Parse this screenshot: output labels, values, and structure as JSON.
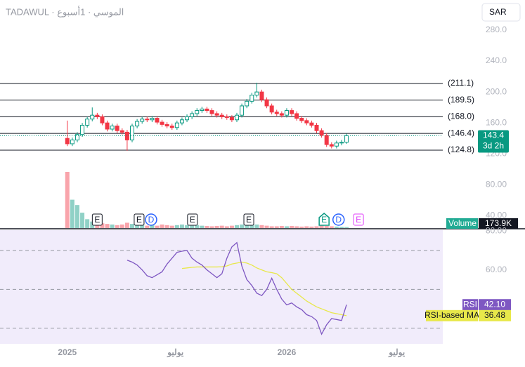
{
  "header": {
    "title": "TADAWUL · الموسي · 1أسبوع",
    "currency": "SAR",
    "countdown": "3d 2h"
  },
  "chart_data": [
    {
      "type": "candlestick",
      "x": [
        0,
        1,
        2,
        3,
        4,
        5,
        6,
        7,
        8,
        9,
        10,
        11,
        12,
        13,
        14,
        15,
        16,
        17,
        18,
        19,
        20,
        21,
        22,
        23,
        24,
        25,
        26,
        27,
        28,
        29,
        30,
        31,
        32,
        33,
        34,
        35,
        36,
        37,
        38,
        39,
        40,
        41,
        42,
        43,
        44,
        45,
        46,
        47,
        48,
        49,
        50,
        51,
        52,
        53,
        54,
        55,
        56
      ],
      "open": [
        140,
        133,
        138,
        145,
        157,
        165,
        170,
        168,
        160,
        152,
        156,
        150,
        148,
        138,
        156,
        162,
        165,
        164,
        166,
        161,
        158,
        156,
        154,
        160,
        164,
        168,
        172,
        176,
        178,
        176,
        172,
        170,
        168,
        167,
        164,
        170,
        182,
        188,
        196,
        200,
        190,
        182,
        174,
        172,
        170,
        176,
        172,
        166,
        163,
        160,
        157,
        150,
        144,
        132,
        130,
        134,
        135
      ],
      "high": [
        163,
        141,
        148,
        160,
        168,
        180,
        173,
        171,
        163,
        159,
        159,
        153,
        151,
        159,
        165,
        168,
        168,
        169,
        169,
        164,
        161,
        159,
        163,
        167,
        171,
        175,
        179,
        181,
        181,
        179,
        175,
        173,
        171,
        170,
        173,
        185,
        191,
        199,
        212,
        203,
        193,
        185,
        177,
        175,
        179,
        179,
        175,
        169,
        166,
        163,
        160,
        153,
        147,
        135,
        137,
        138,
        146
      ],
      "low": [
        130,
        130,
        135,
        142,
        154,
        162,
        165,
        157,
        149,
        149,
        147,
        145,
        124,
        135,
        153,
        159,
        161,
        161,
        158,
        155,
        153,
        151,
        151,
        157,
        161,
        165,
        169,
        173,
        173,
        169,
        167,
        165,
        164,
        161,
        161,
        167,
        179,
        185,
        193,
        187,
        179,
        171,
        169,
        167,
        167,
        169,
        163,
        160,
        157,
        154,
        147,
        141,
        129,
        127,
        127,
        131,
        133
      ],
      "close": [
        133,
        138,
        145,
        157,
        165,
        170,
        168,
        160,
        152,
        156,
        150,
        148,
        138,
        156,
        162,
        165,
        164,
        166,
        161,
        158,
        156,
        154,
        160,
        164,
        168,
        172,
        176,
        178,
        176,
        172,
        170,
        168,
        167,
        164,
        170,
        182,
        188,
        196,
        200,
        190,
        182,
        174,
        172,
        170,
        176,
        172,
        166,
        163,
        160,
        157,
        150,
        144,
        132,
        130,
        134,
        135,
        143.4
      ],
      "up_color": "#089981",
      "down_color": "#f23645",
      "volume": {
        "name": "Volume",
        "values": [
          9500,
          4800,
          3900,
          2600,
          1500,
          1100,
          900,
          800,
          700,
          600,
          500,
          600,
          900,
          700,
          500,
          600,
          400,
          500,
          400,
          600,
          500,
          400,
          500,
          600,
          500,
          400,
          500,
          400,
          350,
          300,
          350,
          400,
          300,
          400,
          500,
          600,
          700,
          900,
          600,
          500,
          400,
          300,
          300,
          350,
          300,
          350,
          300,
          250,
          300,
          250,
          300,
          400,
          350,
          300,
          250,
          200,
          173.9
        ],
        "value_labels": [
          null,
          null,
          null,
          null,
          null,
          null,
          null,
          null,
          null,
          null,
          null,
          null,
          null,
          null,
          null,
          null,
          null,
          null,
          null,
          null,
          null,
          null,
          null,
          null,
          null,
          null,
          null,
          null,
          null,
          null,
          null,
          null,
          null,
          null,
          null,
          null,
          null,
          null,
          null,
          null,
          null,
          null,
          null,
          null,
          null,
          null,
          null,
          null,
          null,
          null,
          null,
          null,
          null,
          null,
          null,
          null,
          "173.9K"
        ]
      },
      "levels": {
        "values": [
          211.1,
          189.5,
          168.0,
          146.4,
          124.8
        ],
        "value_labels": [
          "(211.1)",
          "(189.5)",
          "(168.0)",
          "(146.4)",
          "(124.8)"
        ]
      },
      "events": [
        {
          "x": 6,
          "label": "E",
          "shape": "box",
          "color": "#131722"
        },
        {
          "x": 14.4,
          "label": "E",
          "shape": "box",
          "color": "#131722"
        },
        {
          "x": 16.8,
          "label": "D",
          "shape": "circle",
          "color": "#2962ff"
        },
        {
          "x": 25.1,
          "label": "E",
          "shape": "box",
          "color": "#131722"
        },
        {
          "x": 36.4,
          "label": "E",
          "shape": "box",
          "color": "#131722"
        },
        {
          "x": 51.5,
          "label": "E",
          "shape": "house",
          "color": "#089981"
        },
        {
          "x": 54.4,
          "label": "D",
          "shape": "circle",
          "color": "#2962ff"
        },
        {
          "x": 58.4,
          "label": "E",
          "shape": "box",
          "color": "#e040fb"
        }
      ],
      "xlim": [
        -13.5,
        75.3
      ],
      "xticks": [
        {
          "value": 0,
          "label": "2025"
        },
        {
          "value": 21.7,
          "label": "يوليو"
        },
        {
          "value": 44,
          "label": "2026"
        },
        {
          "value": 66.1,
          "label": "يوليو"
        }
      ],
      "ylim": [
        24,
        319
      ],
      "yticks": [
        {
          "value": 280,
          "label": "280.0"
        },
        {
          "value": 240,
          "label": "240.0"
        },
        {
          "value": 200,
          "label": "200.0"
        },
        {
          "value": 160,
          "label": "160.0"
        },
        {
          "value": 120,
          "label": "120.0"
        },
        {
          "value": 80,
          "label": "80.00"
        },
        {
          "value": 40,
          "label": "40.00"
        }
      ]
    },
    {
      "type": "line",
      "series": [
        {
          "name": "RSI",
          "color": "#7e57c2",
          "values": [
            null,
            null,
            null,
            null,
            null,
            null,
            null,
            null,
            null,
            null,
            null,
            null,
            65,
            64,
            62.5,
            60,
            57,
            56,
            57.5,
            59,
            63,
            66,
            69,
            69.6,
            70,
            66,
            64,
            62.5,
            60,
            58,
            56,
            58,
            66,
            71.8,
            74,
            62,
            55,
            52,
            48,
            46.8,
            50,
            55.7,
            50,
            45,
            42,
            43,
            41,
            39.6,
            37,
            36,
            34,
            27,
            31.8,
            35,
            34.5,
            34,
            42.1
          ],
          "value_labels": [
            null,
            null,
            null,
            null,
            null,
            null,
            null,
            null,
            null,
            null,
            null,
            null,
            null,
            null,
            null,
            null,
            null,
            null,
            null,
            null,
            null,
            null,
            null,
            null,
            null,
            null,
            null,
            null,
            null,
            null,
            null,
            null,
            null,
            null,
            null,
            null,
            null,
            null,
            null,
            null,
            null,
            null,
            null,
            null,
            null,
            null,
            null,
            null,
            null,
            null,
            null,
            null,
            null,
            null,
            null,
            null,
            "42.10"
          ]
        },
        {
          "name": "RSI-based MA",
          "color": "#e8e84a",
          "values": [
            null,
            null,
            null,
            null,
            null,
            null,
            null,
            null,
            null,
            null,
            null,
            null,
            null,
            null,
            null,
            null,
            null,
            null,
            null,
            null,
            null,
            null,
            null,
            60.7,
            61,
            61.3,
            61.5,
            61.5,
            61.5,
            61.5,
            61.5,
            61.6,
            62,
            63,
            63.5,
            64,
            63.5,
            62.5,
            61,
            60,
            59,
            58.6,
            58,
            56,
            53,
            50,
            48,
            46,
            44,
            42.5,
            41,
            40,
            39,
            38,
            37.5,
            37,
            36.48
          ]
        }
      ],
      "levels": [
        70,
        50,
        30
      ],
      "ylim": [
        22,
        80.4
      ],
      "yticks": [
        {
          "value": 80,
          "label": "80.00"
        },
        {
          "value": 60,
          "label": "60.00"
        }
      ]
    }
  ]
}
